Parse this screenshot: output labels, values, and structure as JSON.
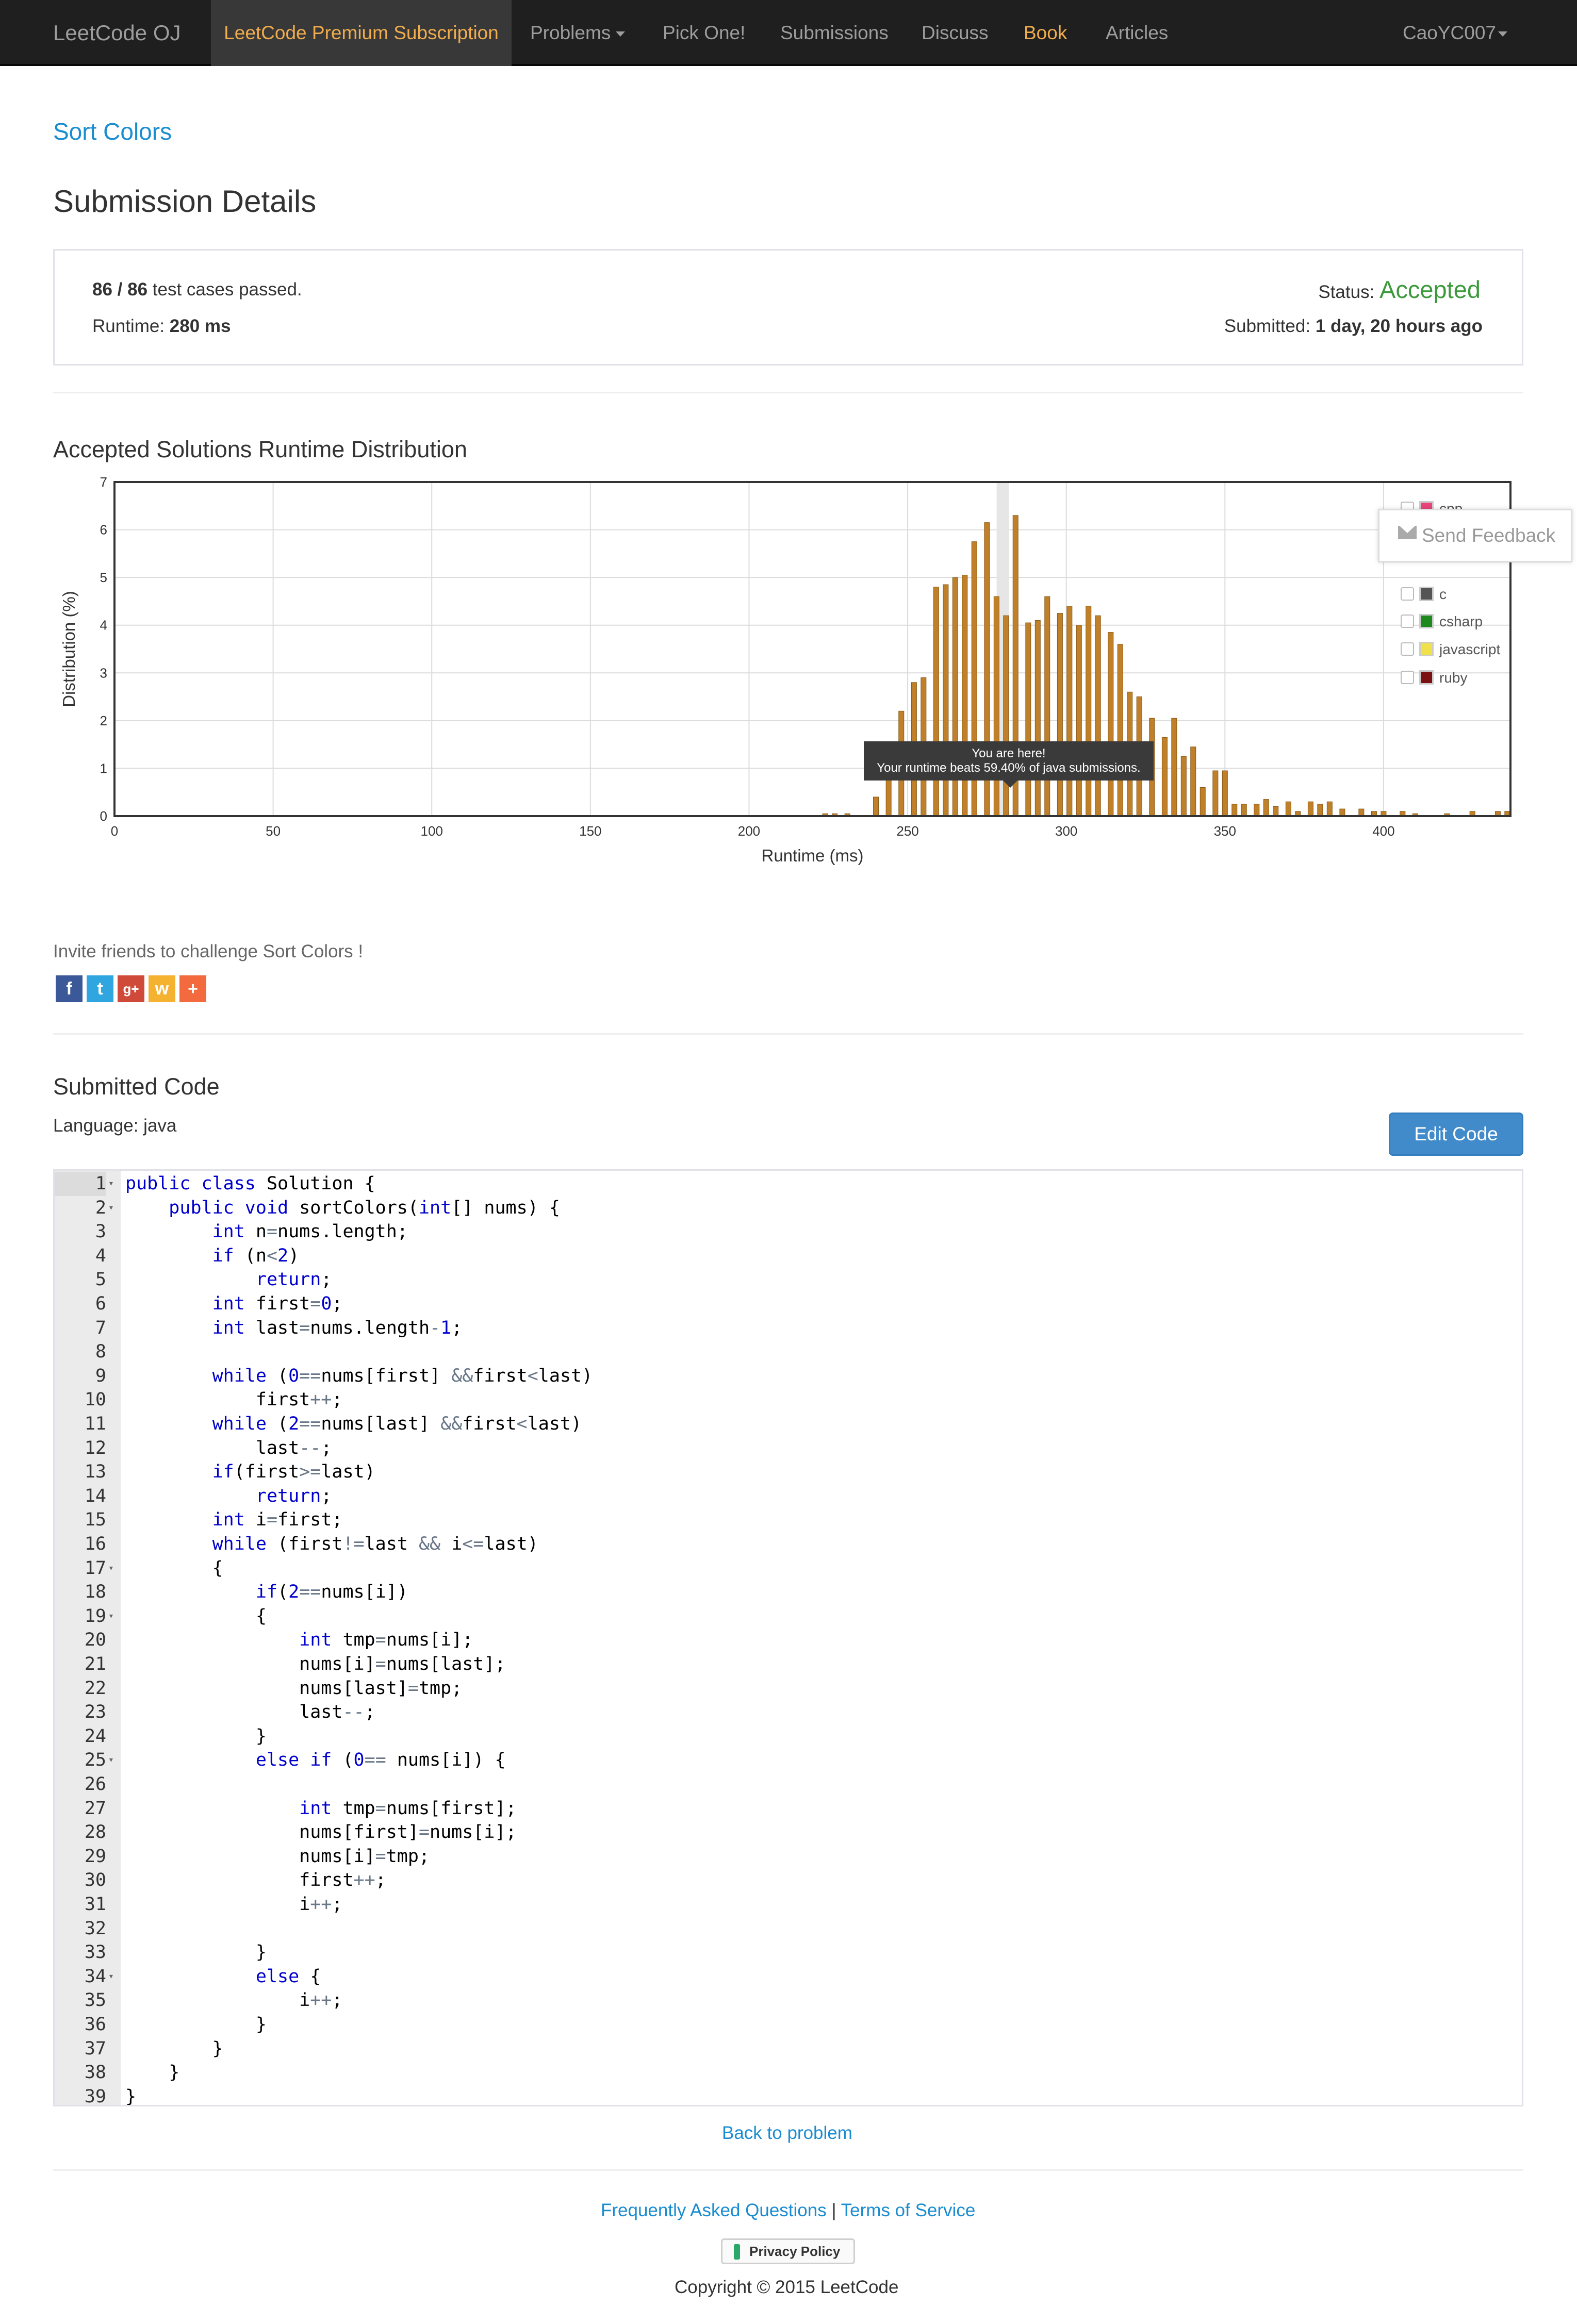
{
  "navbar": {
    "brand": "LeetCode OJ",
    "items": [
      {
        "label": "LeetCode Premium Subscription"
      },
      {
        "label": "Problems"
      },
      {
        "label": "Pick One!"
      },
      {
        "label": "Submissions"
      },
      {
        "label": "Discuss"
      },
      {
        "label": "Book"
      },
      {
        "label": "Articles"
      }
    ],
    "user": "CaoYC007"
  },
  "problem_link": "Sort Colors",
  "page_title": "Submission Details",
  "details": {
    "cases_count": "86 / 86",
    "cases_text": " test cases passed.",
    "runtime_label": "Runtime: ",
    "runtime_value": "280 ms",
    "status_label": "Status: ",
    "status_value": "Accepted",
    "submitted_label": "Submitted: ",
    "submitted_value": "1 day, 20 hours ago",
    "accepted_color": "#3c9a3c"
  },
  "distribution_title": "Accepted Solutions Runtime Distribution",
  "chart_data": {
    "type": "bar",
    "xlabel": "Runtime (ms)",
    "ylabel": "Distribution (%)",
    "xlim": [
      0,
      440
    ],
    "ylim": [
      0,
      7
    ],
    "xticks": [
      0,
      50,
      100,
      150,
      200,
      250,
      300,
      350,
      400
    ],
    "yticks": [
      0,
      1,
      2,
      3,
      4,
      5,
      6,
      7
    ],
    "grid": true,
    "legend_position": "top-right",
    "highlight_x": 280,
    "bar_color": "#c0802a",
    "series": [
      {
        "name": "java",
        "x": [
          224,
          227,
          231,
          240,
          244,
          248,
          252,
          255,
          259,
          262,
          265,
          268,
          271,
          275,
          278,
          281,
          284,
          288,
          291,
          294,
          298,
          301,
          304,
          307,
          310,
          314,
          317,
          320,
          323,
          327,
          331,
          334,
          337,
          340,
          343,
          347,
          350,
          353,
          356,
          360,
          363,
          366,
          370,
          373,
          377,
          380,
          383,
          387,
          393,
          397,
          400,
          406,
          410,
          420,
          428,
          436,
          439
        ],
        "values": [
          0.05,
          0.05,
          0.05,
          0.4,
          0.9,
          2.2,
          2.8,
          2.9,
          4.8,
          4.85,
          5.0,
          5.05,
          5.75,
          6.15,
          4.6,
          4.2,
          6.3,
          4.05,
          4.1,
          4.6,
          4.25,
          4.4,
          4.0,
          4.4,
          4.2,
          3.85,
          3.6,
          2.6,
          2.5,
          2.05,
          1.65,
          2.05,
          1.25,
          1.45,
          0.6,
          0.95,
          0.95,
          0.25,
          0.25,
          0.25,
          0.35,
          0.2,
          0.3,
          0.1,
          0.3,
          0.25,
          0.3,
          0.15,
          0.15,
          0.1,
          0.1,
          0.1,
          0.05,
          0.05,
          0.1,
          0.1,
          0.1
        ]
      }
    ],
    "legend": [
      {
        "name": "cpp",
        "color": "#e8437a"
      },
      {
        "name": "c",
        "color": "#555555"
      },
      {
        "name": "csharp",
        "color": "#1e8a1e"
      },
      {
        "name": "javascript",
        "color": "#f0e04a"
      },
      {
        "name": "ruby",
        "color": "#7a1010"
      }
    ],
    "tooltip": {
      "line1": "You are here!",
      "line2": "Your runtime beats 59.40% of java submissions."
    }
  },
  "feedback_label": "Send Feedback",
  "invite_text": "Invite friends to challenge Sort Colors !",
  "share_icons": [
    {
      "name": "facebook",
      "glyph": "f",
      "color": "#3b5998"
    },
    {
      "name": "twitter",
      "glyph": "t",
      "color": "#2fa6e0"
    },
    {
      "name": "google-plus",
      "glyph": "g+",
      "color": "#d04a3a"
    },
    {
      "name": "weibo",
      "glyph": "w",
      "color": "#f5b130"
    },
    {
      "name": "more",
      "glyph": "+",
      "color": "#f26a3e"
    }
  ],
  "submitted_code_title": "Submitted Code",
  "language_label": "Language: java",
  "edit_code_label": "Edit Code",
  "code": {
    "fold_lines": [
      1,
      2,
      17,
      19,
      25,
      34
    ],
    "lines": [
      [
        [
          "kw",
          "public class"
        ],
        [
          "t",
          " Solution {"
        ]
      ],
      [
        [
          "t",
          "    "
        ],
        [
          "kw",
          "public void"
        ],
        [
          "t",
          " sortColors("
        ],
        [
          "kw",
          "int"
        ],
        [
          "t",
          "[] nums) {"
        ]
      ],
      [
        [
          "t",
          "        "
        ],
        [
          "kw",
          "int"
        ],
        [
          "t",
          " n"
        ],
        [
          "op",
          "="
        ],
        [
          "t",
          "nums.length;"
        ]
      ],
      [
        [
          "t",
          "        "
        ],
        [
          "kw",
          "if"
        ],
        [
          "t",
          " (n"
        ],
        [
          "op",
          "<"
        ],
        [
          "num",
          "2"
        ],
        [
          "t",
          ")"
        ]
      ],
      [
        [
          "t",
          "            "
        ],
        [
          "kw",
          "return"
        ],
        [
          "t",
          ";"
        ]
      ],
      [
        [
          "t",
          "        "
        ],
        [
          "kw",
          "int"
        ],
        [
          "t",
          " first"
        ],
        [
          "op",
          "="
        ],
        [
          "num",
          "0"
        ],
        [
          "t",
          ";"
        ]
      ],
      [
        [
          "t",
          "        "
        ],
        [
          "kw",
          "int"
        ],
        [
          "t",
          " last"
        ],
        [
          "op",
          "="
        ],
        [
          "t",
          "nums.length"
        ],
        [
          "op",
          "-"
        ],
        [
          "num",
          "1"
        ],
        [
          "t",
          ";"
        ]
      ],
      [
        [
          "t",
          ""
        ]
      ],
      [
        [
          "t",
          "        "
        ],
        [
          "kw",
          "while"
        ],
        [
          "t",
          " ("
        ],
        [
          "num",
          "0"
        ],
        [
          "op",
          "=="
        ],
        [
          "t",
          "nums[first] "
        ],
        [
          "op",
          "&&"
        ],
        [
          "t",
          "first"
        ],
        [
          "op",
          "<"
        ],
        [
          "t",
          "last)"
        ]
      ],
      [
        [
          "t",
          "            first"
        ],
        [
          "op",
          "++"
        ],
        [
          "t",
          ";"
        ]
      ],
      [
        [
          "t",
          "        "
        ],
        [
          "kw",
          "while"
        ],
        [
          "t",
          " ("
        ],
        [
          "num",
          "2"
        ],
        [
          "op",
          "=="
        ],
        [
          "t",
          "nums[last] "
        ],
        [
          "op",
          "&&"
        ],
        [
          "t",
          "first"
        ],
        [
          "op",
          "<"
        ],
        [
          "t",
          "last)"
        ]
      ],
      [
        [
          "t",
          "            last"
        ],
        [
          "op",
          "--"
        ],
        [
          "t",
          ";"
        ]
      ],
      [
        [
          "t",
          "        "
        ],
        [
          "kw",
          "if"
        ],
        [
          "t",
          "(first"
        ],
        [
          "op",
          ">="
        ],
        [
          "t",
          "last)"
        ]
      ],
      [
        [
          "t",
          "            "
        ],
        [
          "kw",
          "return"
        ],
        [
          "t",
          ";"
        ]
      ],
      [
        [
          "t",
          "        "
        ],
        [
          "kw",
          "int"
        ],
        [
          "t",
          " i"
        ],
        [
          "op",
          "="
        ],
        [
          "t",
          "first;"
        ]
      ],
      [
        [
          "t",
          "        "
        ],
        [
          "kw",
          "while"
        ],
        [
          "t",
          " (first"
        ],
        [
          "op",
          "!="
        ],
        [
          "t",
          "last "
        ],
        [
          "op",
          "&&"
        ],
        [
          "t",
          " i"
        ],
        [
          "op",
          "<="
        ],
        [
          "t",
          "last)"
        ]
      ],
      [
        [
          "t",
          "        {"
        ]
      ],
      [
        [
          "t",
          "            "
        ],
        [
          "kw",
          "if"
        ],
        [
          "t",
          "("
        ],
        [
          "num",
          "2"
        ],
        [
          "op",
          "=="
        ],
        [
          "t",
          "nums[i])"
        ]
      ],
      [
        [
          "t",
          "            {"
        ]
      ],
      [
        [
          "t",
          "                "
        ],
        [
          "kw",
          "int"
        ],
        [
          "t",
          " tmp"
        ],
        [
          "op",
          "="
        ],
        [
          "t",
          "nums[i];"
        ]
      ],
      [
        [
          "t",
          "                nums[i]"
        ],
        [
          "op",
          "="
        ],
        [
          "t",
          "nums[last];"
        ]
      ],
      [
        [
          "t",
          "                nums[last]"
        ],
        [
          "op",
          "="
        ],
        [
          "t",
          "tmp;"
        ]
      ],
      [
        [
          "t",
          "                last"
        ],
        [
          "op",
          "--"
        ],
        [
          "t",
          ";"
        ]
      ],
      [
        [
          "t",
          "            }"
        ]
      ],
      [
        [
          "t",
          "            "
        ],
        [
          "kw",
          "else if"
        ],
        [
          "t",
          " ("
        ],
        [
          "num",
          "0"
        ],
        [
          "op",
          "=="
        ],
        [
          "t",
          " nums[i]) {"
        ]
      ],
      [
        [
          "t",
          ""
        ]
      ],
      [
        [
          "t",
          "                "
        ],
        [
          "kw",
          "int"
        ],
        [
          "t",
          " tmp"
        ],
        [
          "op",
          "="
        ],
        [
          "t",
          "nums[first];"
        ]
      ],
      [
        [
          "t",
          "                nums[first]"
        ],
        [
          "op",
          "="
        ],
        [
          "t",
          "nums[i];"
        ]
      ],
      [
        [
          "t",
          "                nums[i]"
        ],
        [
          "op",
          "="
        ],
        [
          "t",
          "tmp;"
        ]
      ],
      [
        [
          "t",
          "                first"
        ],
        [
          "op",
          "++"
        ],
        [
          "t",
          ";"
        ]
      ],
      [
        [
          "t",
          "                i"
        ],
        [
          "op",
          "++"
        ],
        [
          "t",
          ";"
        ]
      ],
      [
        [
          "t",
          ""
        ]
      ],
      [
        [
          "t",
          "            }"
        ]
      ],
      [
        [
          "t",
          "            "
        ],
        [
          "kw",
          "else"
        ],
        [
          "t",
          " {"
        ]
      ],
      [
        [
          "t",
          "                i"
        ],
        [
          "op",
          "++"
        ],
        [
          "t",
          ";"
        ]
      ],
      [
        [
          "t",
          "            }"
        ]
      ],
      [
        [
          "t",
          "        }"
        ]
      ],
      [
        [
          "t",
          "    }"
        ]
      ],
      [
        [
          "t",
          "}"
        ]
      ]
    ]
  },
  "back_to_problem": "Back to problem",
  "footer": {
    "faq": "Frequently Asked Questions",
    "divider": " | ",
    "terms": "Terms of Service",
    "privacy": "Privacy Policy",
    "copyright": "Copyright © 2015 LeetCode"
  }
}
